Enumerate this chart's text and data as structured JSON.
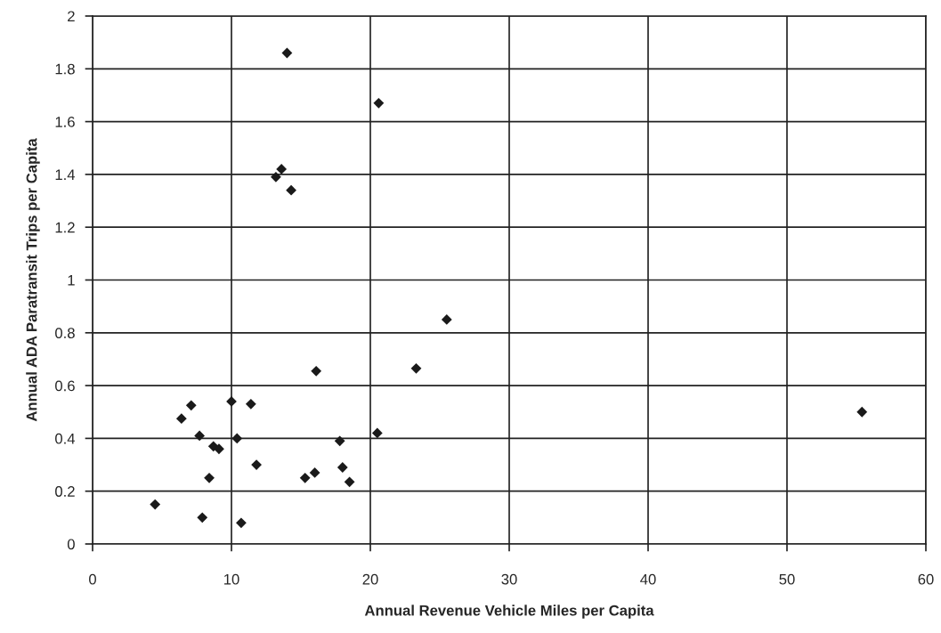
{
  "chart_data": {
    "type": "scatter",
    "xlabel": "Annual Revenue Vehicle Miles per Capita",
    "ylabel": "Annual ADA Paratransit Trips per Capita",
    "x": [
      4.5,
      6.4,
      7.1,
      7.7,
      7.9,
      8.4,
      8.7,
      9.1,
      10.0,
      10.4,
      10.7,
      11.4,
      11.8,
      13.2,
      13.6,
      14.0,
      14.3,
      15.3,
      16.0,
      16.1,
      17.8,
      18.0,
      18.5,
      20.5,
      20.6,
      23.3,
      25.5,
      55.4
    ],
    "values": [
      0.15,
      0.475,
      0.525,
      0.41,
      0.1,
      0.25,
      0.37,
      0.36,
      0.54,
      0.4,
      0.08,
      0.53,
      0.3,
      1.39,
      1.42,
      1.86,
      1.34,
      0.25,
      0.27,
      0.655,
      0.39,
      0.29,
      0.235,
      0.42,
      1.67,
      0.665,
      0.85,
      0.5
    ],
    "color": "#1a1a1a",
    "marker": "diamond",
    "grid": true,
    "xlim": [
      0,
      60
    ],
    "xticks": [
      0,
      10,
      20,
      30,
      40,
      50,
      60
    ],
    "ylim": [
      0,
      2
    ],
    "yticks": [
      0,
      {
        "value": 0.2,
        "label": "0.2"
      },
      {
        "value": 0.4,
        "label": "0.4"
      },
      {
        "value": 0.6,
        "label": "0.6"
      },
      {
        "value": 0.8,
        "label": "0.8"
      },
      1,
      {
        "value": 1.2,
        "label": "1.2"
      },
      {
        "value": 1.4,
        "label": "1.4"
      },
      {
        "value": 1.6,
        "label": "1.6"
      },
      {
        "value": 1.8,
        "label": "1.8"
      },
      2
    ]
  }
}
